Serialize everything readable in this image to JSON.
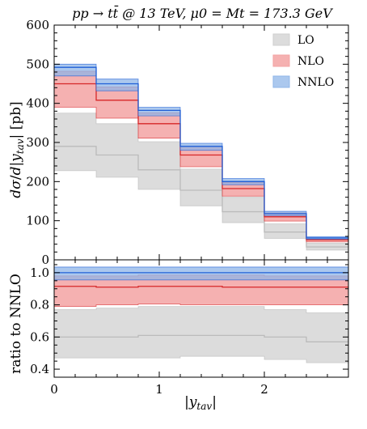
{
  "title": "pp → tt̄ @ 13 TeV, μ0 = Mt = 173.3 GeV",
  "chart_data": {
    "type": "histogram-bands",
    "x_edges": [
      0,
      0.4,
      0.8,
      1.2,
      1.6,
      2.0,
      2.4,
      2.8
    ],
    "main": {
      "ylabel": "dσ/d|y_tav| [pb]",
      "ylim": [
        0,
        600
      ],
      "yticks": [
        0,
        100,
        200,
        300,
        400,
        500,
        600
      ],
      "series": [
        {
          "name": "LO",
          "color": "#bbbbbb",
          "fill": "#dcdcdc",
          "central": [
            290,
            268,
            230,
            178,
            123,
            71,
            33
          ],
          "low": [
            228,
            211,
            180,
            138,
            95,
            55,
            25
          ],
          "high": [
            375,
            348,
            302,
            232,
            160,
            92,
            43
          ]
        },
        {
          "name": "NLO",
          "color": "#d62728",
          "fill": "#f3a3a3",
          "central": [
            450,
            408,
            348,
            268,
            182,
            110,
            51
          ],
          "low": [
            390,
            362,
            311,
            238,
            163,
            99,
            46
          ],
          "high": [
            482,
            442,
            376,
            290,
            198,
            120,
            56
          ]
        },
        {
          "name": "NNLO",
          "color": "#1f5fd6",
          "fill": "#8fb6e8",
          "central": [
            492,
            450,
            382,
            290,
            200,
            118,
            56
          ],
          "low": [
            470,
            432,
            368,
            280,
            192,
            113,
            53
          ],
          "high": [
            500,
            462,
            390,
            298,
            208,
            124,
            59
          ]
        }
      ]
    },
    "ratio": {
      "ylabel": "ratio to NNLO",
      "ylim": [
        0.35,
        1.08
      ],
      "yticks": [
        0.4,
        0.6,
        0.8,
        1.0
      ],
      "ytick_labels": [
        "0.4",
        "0.6",
        "0.8",
        "1.0"
      ],
      "series": [
        {
          "name": "LO",
          "central": [
            0.6,
            0.6,
            0.61,
            0.61,
            0.61,
            0.6,
            0.57
          ],
          "low": [
            0.47,
            0.47,
            0.47,
            0.48,
            0.48,
            0.46,
            0.44
          ],
          "high": [
            0.77,
            0.78,
            0.79,
            0.79,
            0.79,
            0.77,
            0.75
          ]
        },
        {
          "name": "NLO",
          "central": [
            0.915,
            0.91,
            0.915,
            0.915,
            0.91,
            0.91,
            0.91
          ],
          "low": [
            0.79,
            0.8,
            0.805,
            0.8,
            0.8,
            0.8,
            0.8
          ],
          "high": [
            0.98,
            0.98,
            0.985,
            0.985,
            0.985,
            0.98,
            0.98
          ]
        },
        {
          "name": "NNLO",
          "central": [
            1.0,
            1.0,
            1.0,
            1.0,
            1.0,
            1.0,
            1.0
          ],
          "low": [
            0.955,
            0.955,
            0.955,
            0.955,
            0.955,
            0.955,
            0.955
          ],
          "high": [
            1.035,
            1.035,
            1.035,
            1.035,
            1.035,
            1.035,
            1.035
          ]
        }
      ]
    },
    "xlabel": "|y_tav|",
    "xlim": [
      0,
      2.8
    ],
    "xticks": [
      0,
      1,
      2
    ],
    "legend": {
      "position": "top-right",
      "entries": [
        "LO",
        "NLO",
        "NNLO"
      ]
    }
  }
}
